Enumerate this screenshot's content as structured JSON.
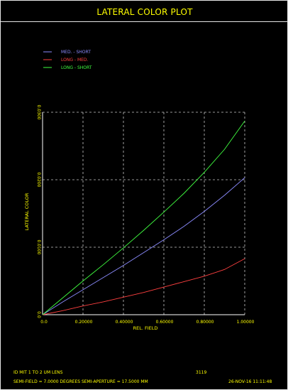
{
  "title": "LATERAL COLOR PLOT",
  "legend": [
    {
      "label": "MED. - SHORT",
      "color": "#8c8cff"
    },
    {
      "label": "LONG - MED.",
      "color": "#ff4040"
    },
    {
      "label": "LONG - SHORT",
      "color": "#40ff40"
    }
  ],
  "chart_data": {
    "type": "line",
    "xlabel": "REL. FIELD",
    "ylabel": "LATERAL COLOR",
    "xlim": [
      0,
      1
    ],
    "ylim": [
      0,
      0.03
    ],
    "x_ticks": [
      "0.0",
      "0.20000",
      "0.40000",
      "0.60000",
      "0.80000",
      "1.00000"
    ],
    "y_ticks": [
      "0.0",
      "0.0100",
      "0.0200",
      "0.0300"
    ],
    "grid": true,
    "legend_position": "top-left",
    "x": [
      0,
      0.1,
      0.2,
      0.3,
      0.4,
      0.5,
      0.6,
      0.7,
      0.8,
      0.9,
      1.0
    ],
    "series": [
      {
        "name": "MED. - SHORT",
        "values": [
          0,
          0.0019,
          0.0037,
          0.0055,
          0.0073,
          0.0092,
          0.0111,
          0.0131,
          0.0153,
          0.0177,
          0.0203
        ]
      },
      {
        "name": "LONG - MED.",
        "values": [
          0,
          0.0006,
          0.0013,
          0.0019,
          0.0026,
          0.0033,
          0.0041,
          0.0049,
          0.0057,
          0.0067,
          0.0083
        ]
      },
      {
        "name": "LONG - SHORT",
        "values": [
          0,
          0.0025,
          0.005,
          0.0074,
          0.0099,
          0.0125,
          0.0152,
          0.018,
          0.0211,
          0.0245,
          0.0287
        ]
      }
    ],
    "colors": {
      "axes": "#ffffff",
      "grid": "#c8c8c8",
      "ticks": "#ffff00"
    }
  },
  "footer": {
    "lens_id": "ID MIT 1 TO 2 UM LENS",
    "number": "3119",
    "field_info": "SEMI-FIELD =   7.0000 DEGREES   SEMI-APERTURE =   17.5000 MM",
    "date": "26-NOV-16  11:11:48"
  }
}
